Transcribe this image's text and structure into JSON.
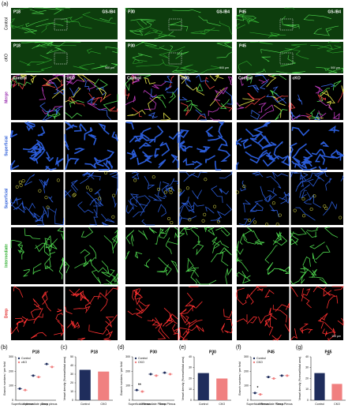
{
  "panel_a": {
    "label": "(a)",
    "ages": [
      "P18",
      "P30",
      "P45"
    ],
    "stain": "GS-IB4",
    "rows": [
      "Control",
      "cKO"
    ],
    "scale_top": "500 μm",
    "conditions": [
      "Control",
      "cKO"
    ],
    "layers": [
      "Merge",
      "Superficial",
      "Superficial",
      "Intermediate",
      "Deep"
    ],
    "scale_bottom": "100 μm"
  },
  "chart_data": [
    {
      "type": "dot",
      "label": "(b)",
      "title": "P18",
      "ylabel": "Branch numbers / per field",
      "categories": [
        "Superficial plexus",
        "Intermediate plexus",
        "Deep plexus"
      ],
      "series": [
        {
          "name": "Control",
          "color": "#1f2d5c",
          "values": [
            80,
            170,
            250
          ]
        },
        {
          "name": "cKO",
          "color": "#f08080",
          "values": [
            70,
            160,
            230
          ]
        }
      ],
      "ylim": [
        0,
        300
      ],
      "yticks": [
        0,
        100,
        200,
        300
      ]
    },
    {
      "type": "bar",
      "label": "(c)",
      "title": "P18",
      "ylabel": "Vessel density (%vessel/total area)",
      "categories": [
        "Control",
        "CKO"
      ],
      "values": [
        35,
        33
      ],
      "colors": [
        "#1f2d5c",
        "#f08080"
      ],
      "ylim": [
        0,
        50
      ],
      "yticks": [
        0,
        10,
        20,
        30,
        40,
        50
      ]
    },
    {
      "type": "dot",
      "label": "(d)",
      "title": "P30",
      "ylabel": "Branch numbers / per field",
      "categories": [
        "Superficial Plexus",
        "Intermediate Plexus",
        "Deep Plexus"
      ],
      "series": [
        {
          "name": "Control",
          "color": "#1f2d5c",
          "values": [
            70,
            180,
            190
          ]
        },
        {
          "name": "CKO",
          "color": "#f08080",
          "values": [
            60,
            170,
            180
          ]
        }
      ],
      "ylim": [
        0,
        300
      ],
      "yticks": [
        0,
        100,
        200,
        300
      ],
      "annotation": "**"
    },
    {
      "type": "bar",
      "label": "(e)",
      "title": "P30",
      "ylabel": "Vessel density (%vessel/total area)",
      "categories": [
        "Control",
        "CKO"
      ],
      "values": [
        25,
        20
      ],
      "colors": [
        "#1f2d5c",
        "#f08080"
      ],
      "ylim": [
        0,
        40
      ],
      "yticks": [
        0,
        10,
        20,
        30,
        40
      ],
      "annotation": "*"
    },
    {
      "type": "dot",
      "label": "(f)",
      "title": "P45",
      "ylabel": "Branch numbers / per field",
      "categories": [
        "Superficial Plexus",
        "Intermediate Plexus",
        "Deep Plexus"
      ],
      "series": [
        {
          "name": "Control",
          "color": "#1f2d5c",
          "values": [
            50,
            160,
            170
          ]
        },
        {
          "name": "CKO",
          "color": "#f08080",
          "values": [
            40,
            150,
            170
          ]
        }
      ],
      "ylim": [
        0,
        300
      ],
      "yticks": [
        0,
        100,
        200,
        300
      ],
      "annotation": "*"
    },
    {
      "type": "bar",
      "label": "(g)",
      "title": "P45",
      "ylabel": "Vessel density (%vessel/total area)",
      "categories": [
        "Control",
        "CKO"
      ],
      "values": [
        25,
        15
      ],
      "colors": [
        "#1f2d5c",
        "#f08080"
      ],
      "ylim": [
        0,
        40
      ],
      "yticks": [
        0,
        10,
        20,
        30,
        40
      ],
      "annotation": "**"
    }
  ]
}
